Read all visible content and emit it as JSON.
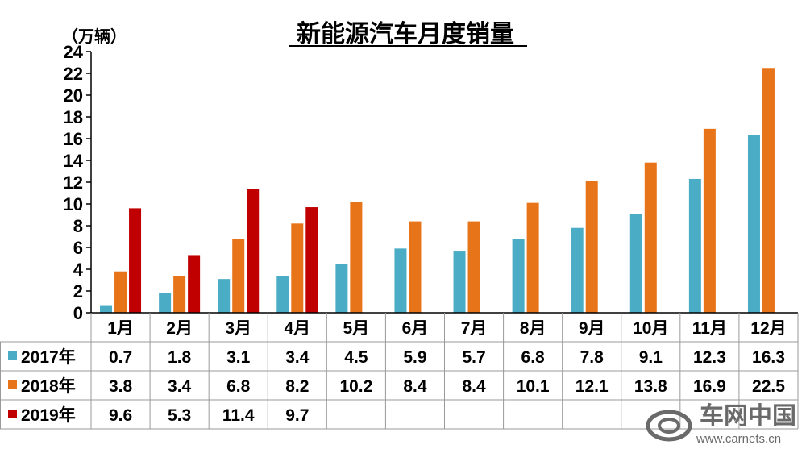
{
  "chart_data": {
    "type": "bar",
    "title": "新能源汽车月度销量",
    "unit": "（万辆）",
    "categories": [
      "1月",
      "2月",
      "3月",
      "4月",
      "5月",
      "6月",
      "7月",
      "8月",
      "9月",
      "10月",
      "11月",
      "12月"
    ],
    "series": [
      {
        "name": "2017年",
        "color": "#4bacc6",
        "values": [
          0.7,
          1.8,
          3.1,
          3.4,
          4.5,
          5.9,
          5.7,
          6.8,
          7.8,
          9.1,
          12.3,
          16.3
        ]
      },
      {
        "name": "2018年",
        "color": "#e8741a",
        "values": [
          3.8,
          3.4,
          6.8,
          8.2,
          10.2,
          8.4,
          8.4,
          10.1,
          12.1,
          13.8,
          16.9,
          22.5
        ]
      },
      {
        "name": "2019年",
        "color": "#c00000",
        "values": [
          9.6,
          5.3,
          11.4,
          9.7,
          null,
          null,
          null,
          null,
          null,
          null,
          null,
          null
        ]
      }
    ],
    "ylim": [
      0,
      24
    ],
    "yticks": [
      0,
      2,
      4,
      6,
      8,
      10,
      12,
      14,
      16,
      18,
      20,
      22,
      24
    ],
    "grid": false,
    "data_table": true
  },
  "watermark": {
    "brand": "车网中国",
    "url": "www.carnets.cn"
  }
}
